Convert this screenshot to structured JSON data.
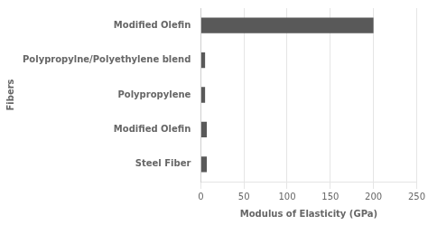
{
  "chart_data": {
    "type": "bar",
    "orientation": "horizontal",
    "categories": [
      "Modified Olefin",
      "Polypropylne/Polyethylene blend",
      "Polypropylene",
      "Modified Olefin",
      "Steel Fiber"
    ],
    "values": [
      200,
      5,
      5,
      7,
      7
    ],
    "color": "#595959",
    "xlabel": "Modulus of Elasticity (GPa)",
    "ylabel": "Fibers",
    "xlim": [
      0,
      250
    ],
    "xticks": [
      0,
      50,
      100,
      150,
      200,
      250
    ],
    "grid": true
  }
}
